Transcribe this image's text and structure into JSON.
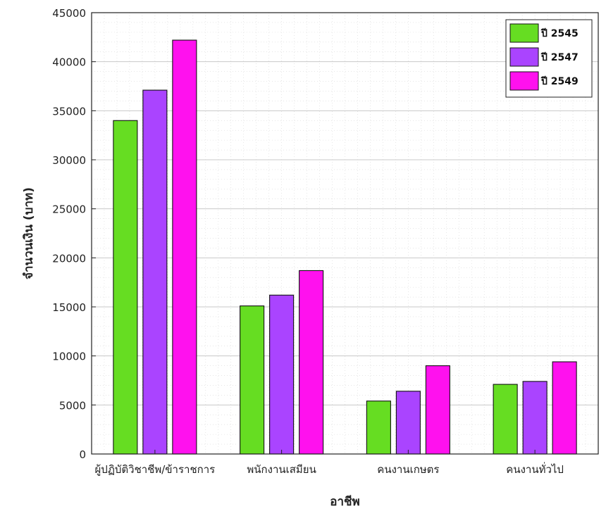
{
  "chart_data": {
    "type": "bar",
    "title": "",
    "xlabel": "อาชีพ",
    "ylabel": "จำนวนเงิน (บาท)",
    "ylim": [
      0,
      45000
    ],
    "yticks": [
      0,
      5000,
      10000,
      15000,
      20000,
      25000,
      30000,
      35000,
      40000,
      45000
    ],
    "categories": [
      "ผู้ปฏิบัติวิชาชีพ/ข้าราชการ",
      "พนักงานเสมียน",
      "คนงานเกษตร",
      "คนงานทั่วไป"
    ],
    "series": [
      {
        "name": "ปี 2545",
        "color": "#66dd22",
        "values": [
          34000,
          15100,
          5400,
          7100
        ]
      },
      {
        "name": "ปี 2547",
        "color": "#aa44ff",
        "values": [
          37100,
          16200,
          6400,
          7400
        ]
      },
      {
        "name": "ปี 2549",
        "color": "#ff11ee",
        "values": [
          42200,
          18700,
          9000,
          9400
        ]
      }
    ],
    "grid": true,
    "legend_position": "top-right"
  }
}
